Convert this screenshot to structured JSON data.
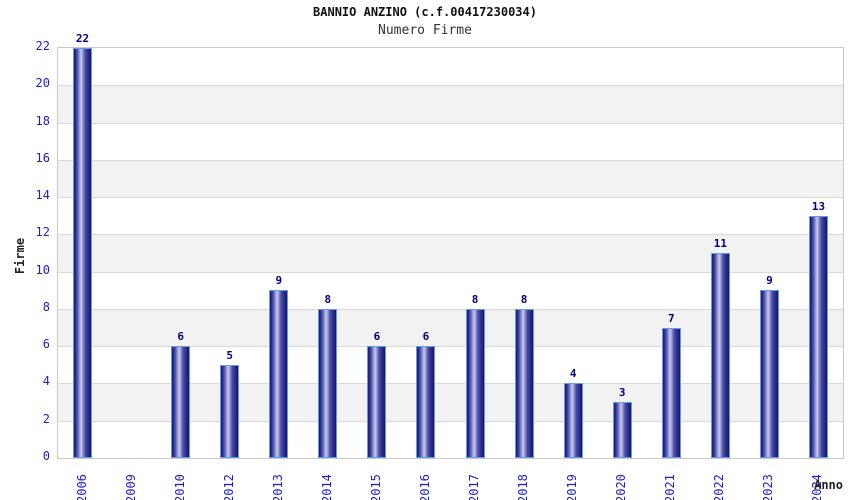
{
  "chart_data": {
    "type": "bar",
    "title": "BANNIO ANZINO (c.f.00417230034)",
    "subtitle": "Numero Firme",
    "xlabel": "Anno",
    "ylabel": "Firme",
    "categories": [
      "2006",
      "2009",
      "2010",
      "2012",
      "2013",
      "2014",
      "2015",
      "2016",
      "2017",
      "2018",
      "2019",
      "2020",
      "2021",
      "2022",
      "2023",
      "2024"
    ],
    "values": [
      22,
      0,
      6,
      5,
      9,
      8,
      6,
      6,
      8,
      8,
      4,
      3,
      7,
      11,
      9,
      13
    ],
    "ylim": [
      0,
      22
    ],
    "ytick_step": 2,
    "grid": true,
    "legend": "none",
    "band_colors": [
      "#ffffff",
      "#f2f2f2"
    ],
    "colors": {
      "title": "#111111",
      "subtitle": "#333333",
      "axis_title": "#222222",
      "tick_label": "#1c1ccc",
      "value_label": "#000080",
      "grid_line": "#d9d9d9",
      "plot_border": "#c9c9c9",
      "bar_border": "#5e9fe8",
      "bar_dark": "#14146e",
      "bar_mid": "#4a4aa8",
      "bar_light": "#c6ccee"
    }
  }
}
